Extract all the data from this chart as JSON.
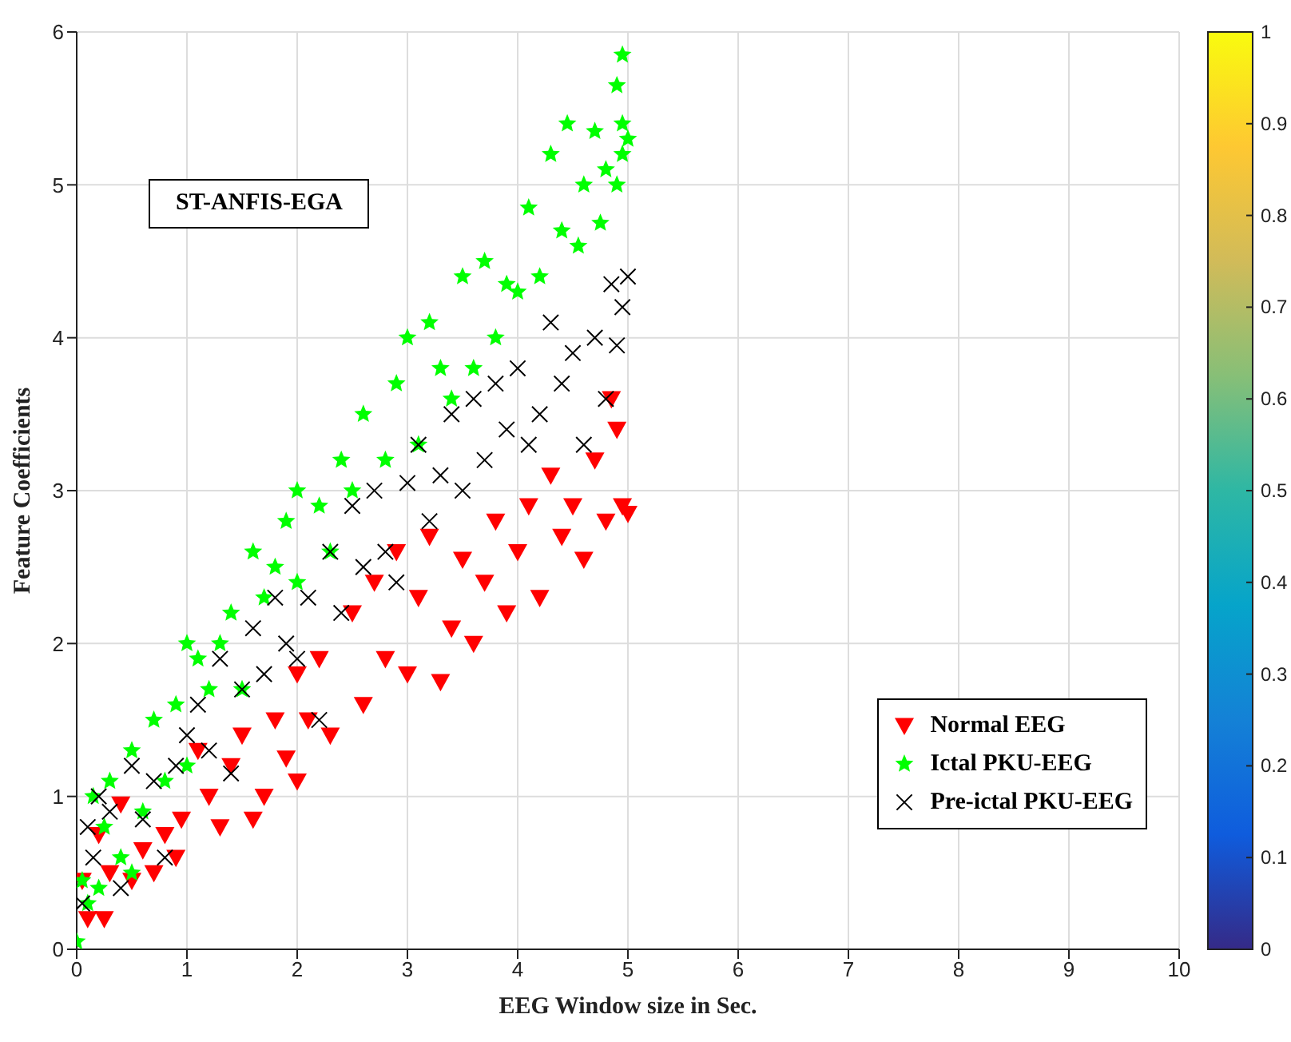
{
  "chart_data": {
    "type": "scatter",
    "xlabel": "EEG Window size in Sec.",
    "ylabel": "Feature Coefficients",
    "annotations": [
      "ST-ANFIS-EGA"
    ],
    "xlim": [
      0,
      10
    ],
    "xticks": [
      0,
      1,
      2,
      3,
      4,
      5,
      6,
      7,
      8,
      9,
      10
    ],
    "ylim": [
      0,
      6
    ],
    "yticks": [
      0,
      1,
      2,
      3,
      4,
      5,
      6
    ],
    "grid": true,
    "legend": "bottom right",
    "clim": [
      0,
      1
    ],
    "cticks": [
      0,
      0.1,
      0.2,
      0.3,
      0.4,
      0.5,
      0.6,
      0.7,
      0.8,
      0.9,
      1
    ],
    "series": [
      {
        "name": "Normal EEG",
        "color": "#ff0000",
        "marker": "triangle",
        "x": [
          0.05,
          0.1,
          0.2,
          0.25,
          0.3,
          0.4,
          0.5,
          0.6,
          0.7,
          0.8,
          0.9,
          0.95,
          1.1,
          1.2,
          1.3,
          1.4,
          1.5,
          1.6,
          1.7,
          1.8,
          1.9,
          2.0,
          2.0,
          2.1,
          2.2,
          2.3,
          2.5,
          2.6,
          2.7,
          2.8,
          2.9,
          3.0,
          3.1,
          3.2,
          3.3,
          3.4,
          3.5,
          3.6,
          3.7,
          3.8,
          3.9,
          4.0,
          4.1,
          4.2,
          4.3,
          4.4,
          4.5,
          4.6,
          4.7,
          4.8,
          4.85,
          4.9,
          4.95,
          5.0
        ],
        "values": [
          0.45,
          0.2,
          0.75,
          0.2,
          0.5,
          0.95,
          0.45,
          0.65,
          0.5,
          0.75,
          0.6,
          0.85,
          1.3,
          1.0,
          0.8,
          1.2,
          1.4,
          0.85,
          1.0,
          1.5,
          1.25,
          1.8,
          1.1,
          1.5,
          1.9,
          1.4,
          2.2,
          1.6,
          2.4,
          1.9,
          2.6,
          1.8,
          2.3,
          2.7,
          1.75,
          2.1,
          2.55,
          2.0,
          2.4,
          2.8,
          2.2,
          2.6,
          2.9,
          2.3,
          3.1,
          2.7,
          2.9,
          2.55,
          3.2,
          2.8,
          3.6,
          3.4,
          2.9,
          2.85
        ]
      },
      {
        "name": "Ictal PKU-EEG",
        "color": "#00ff00",
        "marker": "star",
        "x": [
          0,
          0.05,
          0.1,
          0.15,
          0.2,
          0.25,
          0.3,
          0.4,
          0.5,
          0.5,
          0.6,
          0.7,
          0.8,
          0.9,
          1.0,
          1.0,
          1.1,
          1.2,
          1.3,
          1.4,
          1.5,
          1.6,
          1.7,
          1.8,
          1.9,
          2.0,
          2.0,
          2.2,
          2.3,
          2.4,
          2.5,
          2.6,
          2.8,
          2.9,
          3.0,
          3.1,
          3.2,
          3.3,
          3.4,
          3.5,
          3.6,
          3.7,
          3.8,
          3.9,
          4.0,
          4.1,
          4.2,
          4.3,
          4.4,
          4.45,
          4.55,
          4.6,
          4.7,
          4.75,
          4.8,
          4.9,
          4.9,
          4.95,
          4.95,
          5.0,
          4.95
        ],
        "values": [
          0.05,
          0.45,
          0.3,
          1.0,
          0.4,
          0.8,
          1.1,
          0.6,
          1.3,
          0.5,
          0.9,
          1.5,
          1.1,
          1.6,
          1.2,
          2.0,
          1.9,
          1.7,
          2.0,
          2.2,
          1.7,
          2.6,
          2.3,
          2.5,
          2.8,
          2.4,
          3.0,
          2.9,
          2.6,
          3.2,
          3.0,
          3.5,
          3.2,
          3.7,
          4.0,
          3.3,
          4.1,
          3.8,
          3.6,
          4.4,
          3.8,
          4.5,
          4.0,
          4.35,
          4.3,
          4.85,
          4.4,
          5.2,
          4.7,
          5.4,
          4.6,
          5.0,
          5.35,
          4.75,
          5.1,
          5.0,
          5.65,
          5.85,
          5.4,
          5.3,
          5.2
        ]
      },
      {
        "name": "Pre-ictal PKU-EEG",
        "color": "#000000",
        "marker": "cross",
        "x": [
          0.05,
          0.1,
          0.15,
          0.2,
          0.3,
          0.4,
          0.5,
          0.6,
          0.7,
          0.8,
          0.9,
          1.0,
          1.1,
          1.2,
          1.3,
          1.4,
          1.5,
          1.6,
          1.7,
          1.8,
          1.9,
          2.0,
          2.1,
          2.2,
          2.3,
          2.4,
          2.5,
          2.6,
          2.7,
          2.8,
          2.9,
          3.0,
          3.1,
          3.2,
          3.3,
          3.4,
          3.5,
          3.6,
          3.7,
          3.8,
          3.9,
          4.0,
          4.1,
          4.2,
          4.3,
          4.4,
          4.5,
          4.6,
          4.7,
          4.8,
          4.85,
          4.9,
          4.95,
          5.0
        ],
        "values": [
          0.3,
          0.8,
          0.6,
          1.0,
          0.9,
          0.4,
          1.2,
          0.85,
          1.1,
          0.6,
          1.2,
          1.4,
          1.6,
          1.3,
          1.9,
          1.15,
          1.7,
          2.1,
          1.8,
          2.3,
          2.0,
          1.9,
          2.3,
          1.5,
          2.6,
          2.2,
          2.9,
          2.5,
          3.0,
          2.6,
          2.4,
          3.05,
          3.3,
          2.8,
          3.1,
          3.5,
          3.0,
          3.6,
          3.2,
          3.7,
          3.4,
          3.8,
          3.3,
          3.5,
          4.1,
          3.7,
          3.9,
          3.3,
          4.0,
          3.6,
          4.35,
          3.95,
          4.2,
          4.4
        ]
      }
    ]
  }
}
